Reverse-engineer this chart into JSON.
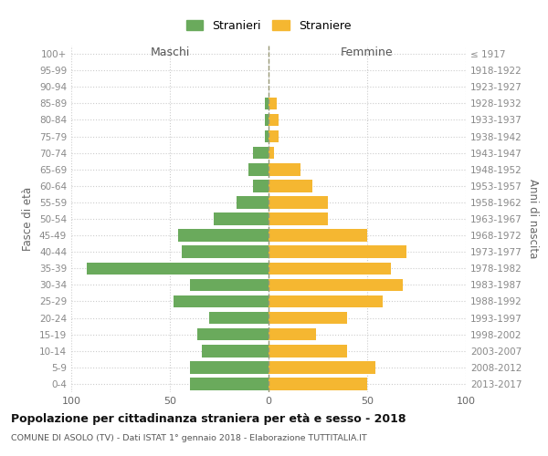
{
  "age_groups": [
    "100+",
    "95-99",
    "90-94",
    "85-89",
    "80-84",
    "75-79",
    "70-74",
    "65-69",
    "60-64",
    "55-59",
    "50-54",
    "45-49",
    "40-44",
    "35-39",
    "30-34",
    "25-29",
    "20-24",
    "15-19",
    "10-14",
    "5-9",
    "0-4"
  ],
  "birth_years": [
    "≤ 1917",
    "1918-1922",
    "1923-1927",
    "1928-1932",
    "1933-1937",
    "1938-1942",
    "1943-1947",
    "1948-1952",
    "1953-1957",
    "1958-1962",
    "1963-1967",
    "1968-1972",
    "1973-1977",
    "1978-1982",
    "1983-1987",
    "1988-1992",
    "1993-1997",
    "1998-2002",
    "2003-2007",
    "2008-2012",
    "2013-2017"
  ],
  "maschi": [
    0,
    0,
    0,
    2,
    2,
    2,
    8,
    10,
    8,
    16,
    28,
    46,
    44,
    92,
    40,
    48,
    30,
    36,
    34,
    40,
    40
  ],
  "femmine": [
    0,
    0,
    0,
    4,
    5,
    5,
    3,
    16,
    22,
    30,
    30,
    50,
    70,
    62,
    68,
    58,
    40,
    24,
    40,
    54,
    50
  ],
  "color_maschi": "#6aaa5c",
  "color_femmine": "#f5b731",
  "bg_color": "#ffffff",
  "grid_color": "#cccccc",
  "title": "Popolazione per cittadinanza straniera per età e sesso - 2018",
  "subtitle": "COMUNE DI ASOLO (TV) - Dati ISTAT 1° gennaio 2018 - Elaborazione TUTTITALIA.IT",
  "label_maschi": "Maschi",
  "label_femmine": "Femmine",
  "ylabel_left": "Fasce di età",
  "ylabel_right": "Anni di nascita",
  "legend_maschi": "Stranieri",
  "legend_femmine": "Straniere",
  "xlim": 100
}
